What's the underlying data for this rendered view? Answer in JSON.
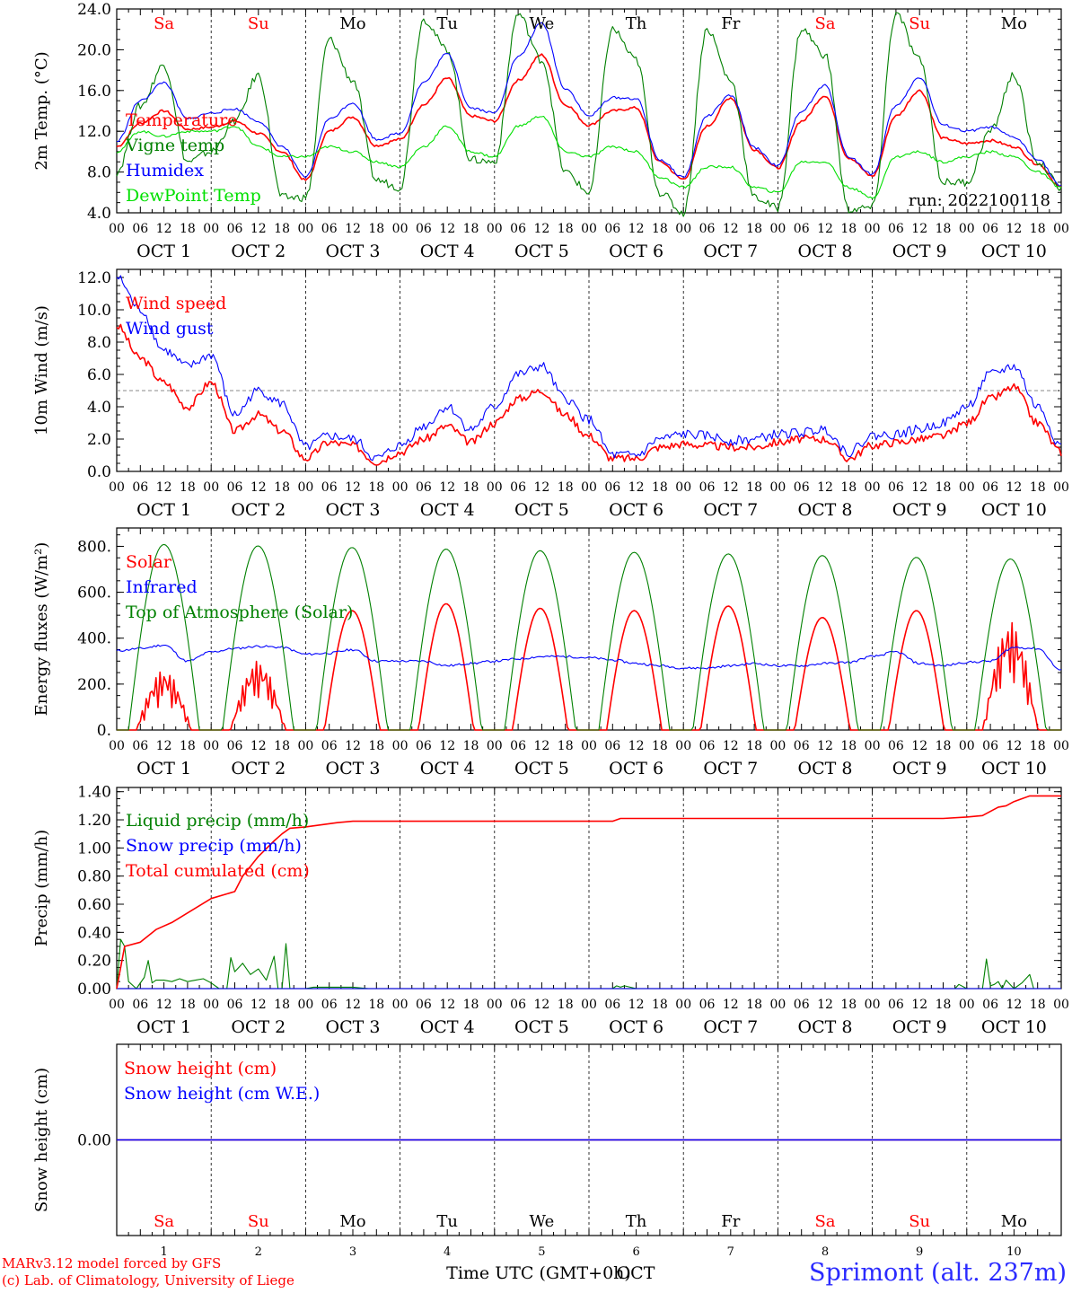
{
  "footer": {
    "model": "MARv3.12 model forced by GFS",
    "lab": "(c) Lab. of Climatology, University of Liege",
    "station": "Sprimont (alt. 237m)"
  },
  "x_axis": {
    "hour_ticks": [
      "00",
      "06",
      "12",
      "18"
    ],
    "day_labels": [
      "OCT  1",
      "OCT  2",
      "OCT  3",
      "OCT  4",
      "OCT  5",
      "OCT  6",
      "OCT  7",
      "OCT  8",
      "OCT  9",
      "OCT 10"
    ],
    "weekdays": [
      "Sa",
      "Su",
      "Mo",
      "Tu",
      "We",
      "Th",
      "Fr",
      "Sa",
      "Su",
      "Mo"
    ],
    "weekend_indices": [
      0,
      1,
      7,
      8
    ],
    "day_numbers": [
      "1",
      "2",
      "3",
      "4",
      "5",
      "6",
      "7",
      "8",
      "9",
      "10"
    ],
    "bottom_label": "Time UTC (GMT+0h)",
    "bottom_month": "OCT"
  },
  "chart_data": [
    {
      "type": "line",
      "panel": "temperature",
      "ylabel": "2m Temp. (°C)",
      "ylim": [
        4,
        24
      ],
      "ytick_labels": [
        "4.0",
        "8.0",
        "12.0",
        "16.0",
        "20.0",
        "24.0"
      ],
      "ytick_values": [
        4,
        8,
        12,
        16,
        20,
        24
      ],
      "run_label": "run: 2022100118",
      "x_hours": [
        0,
        6,
        12,
        18,
        24,
        30,
        36,
        42,
        48,
        54,
        60,
        66,
        72,
        78,
        84,
        90,
        96,
        102,
        108,
        114,
        120,
        126,
        132,
        138,
        144,
        150,
        156,
        162,
        168,
        174,
        180,
        186,
        192,
        198,
        204,
        210,
        216,
        222,
        228,
        234,
        240
      ],
      "series": [
        {
          "name": "Temperature",
          "color": "#ff0000",
          "values": [
            10.5,
            12.8,
            14.0,
            12.2,
            12.4,
            13.0,
            11.8,
            10.0,
            7.2,
            12.0,
            13.4,
            10.6,
            11.2,
            14.6,
            17.2,
            13.5,
            13.0,
            17.0,
            19.5,
            14.6,
            12.6,
            14.0,
            14.3,
            9.0,
            7.3,
            12.5,
            15.3,
            10.2,
            8.4,
            13.0,
            15.5,
            9.4,
            7.6,
            13.5,
            16.0,
            11.3,
            10.8,
            11.1,
            10.5,
            8.8,
            6.5
          ]
        },
        {
          "name": "Vigne temp",
          "color": "#008000",
          "values": [
            8.0,
            14.5,
            18.5,
            9.0,
            10.0,
            13.0,
            17.5,
            5.5,
            5.5,
            21.0,
            17.0,
            7.2,
            6.5,
            23.0,
            20.0,
            9.2,
            9.0,
            23.5,
            19.0,
            8.0,
            6.0,
            22.0,
            19.0,
            6.0,
            4.0,
            22.0,
            17.0,
            5.5,
            4.5,
            22.0,
            19.5,
            4.3,
            4.5,
            23.5,
            19.0,
            7.0,
            7.0,
            12.0,
            17.5,
            9.0,
            6.5
          ]
        },
        {
          "name": "Humidex",
          "color": "#0000ff",
          "values": [
            11.0,
            15.0,
            16.8,
            13.2,
            13.8,
            14.2,
            13.0,
            10.5,
            7.5,
            13.2,
            14.8,
            11.2,
            11.8,
            16.8,
            19.6,
            14.3,
            13.8,
            19.3,
            22.6,
            16.2,
            13.5,
            15.3,
            15.2,
            9.2,
            7.5,
            13.5,
            15.5,
            10.4,
            8.6,
            14.0,
            16.5,
            9.5,
            7.8,
            14.5,
            17.3,
            12.6,
            12.0,
            12.4,
            11.4,
            9.3,
            6.6
          ]
        },
        {
          "name": "DewPoint Temp",
          "color": "#00e000",
          "values": [
            10.0,
            12.0,
            11.5,
            12.0,
            12.0,
            12.5,
            10.5,
            9.5,
            9.5,
            10.5,
            10.0,
            9.0,
            8.5,
            10.5,
            12.5,
            10.0,
            9.5,
            12.5,
            13.5,
            10.0,
            9.5,
            10.5,
            10.0,
            7.5,
            6.5,
            8.5,
            8.5,
            6.5,
            6.0,
            9.0,
            9.0,
            6.5,
            5.5,
            9.5,
            10.0,
            9.0,
            9.5,
            10.0,
            9.5,
            8.0,
            6.5
          ]
        }
      ]
    },
    {
      "type": "line",
      "panel": "wind",
      "ylabel": "10m Wind (m/s)",
      "ylim": [
        0,
        12.5
      ],
      "ytick_labels": [
        "0.0",
        "2.0",
        "4.0",
        "6.0",
        "8.0",
        "10.0",
        "12.0"
      ],
      "ytick_values": [
        0,
        2,
        4,
        6,
        8,
        10,
        12
      ],
      "reference_line": 5.0,
      "x_hours": [
        0,
        6,
        12,
        18,
        24,
        30,
        36,
        42,
        48,
        54,
        60,
        66,
        72,
        78,
        84,
        90,
        96,
        102,
        108,
        114,
        120,
        126,
        132,
        138,
        144,
        150,
        156,
        162,
        168,
        174,
        180,
        186,
        192,
        198,
        204,
        210,
        216,
        222,
        228,
        234,
        240
      ],
      "series": [
        {
          "name": "Wind speed",
          "color": "#ff0000",
          "values": [
            9.0,
            7.0,
            5.5,
            4.0,
            5.5,
            2.5,
            3.5,
            2.5,
            0.8,
            1.8,
            1.6,
            0.6,
            1.2,
            2.0,
            2.8,
            1.8,
            3.0,
            4.5,
            5.0,
            3.5,
            2.2,
            0.8,
            0.8,
            1.5,
            1.7,
            1.6,
            1.5,
            1.5,
            1.8,
            2.0,
            2.0,
            0.8,
            1.6,
            1.8,
            2.0,
            2.2,
            3.0,
            4.5,
            5.2,
            3.0,
            1.2
          ]
        },
        {
          "name": "Wind gust",
          "color": "#0000ff",
          "values": [
            12.0,
            10.0,
            7.5,
            6.5,
            7.2,
            3.5,
            5.0,
            4.2,
            1.5,
            2.2,
            2.0,
            0.8,
            1.6,
            2.8,
            4.0,
            2.6,
            4.0,
            6.0,
            6.5,
            4.5,
            3.2,
            1.0,
            1.0,
            2.0,
            2.3,
            2.2,
            1.9,
            2.0,
            2.3,
            2.4,
            2.6,
            1.2,
            2.2,
            2.3,
            2.6,
            3.0,
            4.0,
            6.0,
            6.5,
            4.0,
            1.6
          ]
        }
      ]
    },
    {
      "type": "line",
      "panel": "energy",
      "ylabel": "Energy fluxes (W/m²)",
      "ylim": [
        0,
        880
      ],
      "ytick_labels": [
        "0.",
        "200.",
        "400.",
        "600.",
        "800."
      ],
      "ytick_values": [
        0,
        200,
        400,
        600,
        800
      ],
      "series": [
        {
          "name": "Solar",
          "color": "#ff0000",
          "day_peaks": [
            260,
            300,
            520,
            550,
            530,
            520,
            540,
            490,
            520,
            470
          ]
        },
        {
          "name": "Infrared",
          "color": "#0000ff",
          "x_hours": [
            0,
            6,
            12,
            18,
            24,
            30,
            36,
            42,
            48,
            54,
            60,
            66,
            72,
            78,
            84,
            90,
            96,
            102,
            108,
            114,
            120,
            126,
            132,
            138,
            144,
            150,
            156,
            162,
            168,
            174,
            180,
            186,
            192,
            198,
            204,
            210,
            216,
            222,
            228,
            234,
            240
          ],
          "values": [
            345,
            355,
            370,
            300,
            340,
            355,
            365,
            360,
            330,
            335,
            350,
            300,
            300,
            300,
            280,
            290,
            300,
            310,
            320,
            320,
            315,
            305,
            290,
            280,
            270,
            270,
            280,
            290,
            280,
            280,
            290,
            295,
            320,
            340,
            290,
            280,
            295,
            300,
            360,
            355,
            260
          ]
        },
        {
          "name": "Top of Atmosphere (Solar)",
          "color": "#008000",
          "day_peaks": [
            808,
            802,
            795,
            788,
            781,
            774,
            767,
            760,
            752,
            745
          ]
        }
      ]
    },
    {
      "type": "line",
      "panel": "precip",
      "ylabel": "Precip (mm/h)",
      "ylim": [
        0,
        1.43
      ],
      "ytick_labels": [
        "0.00",
        "0.20",
        "0.40",
        "0.60",
        "0.80",
        "1.00",
        "1.20",
        "1.40"
      ],
      "ytick_values": [
        0,
        0.2,
        0.4,
        0.6,
        0.8,
        1.0,
        1.2,
        1.4
      ],
      "series": [
        {
          "name": "Liquid precip (mm/h)",
          "color": "#008000",
          "x_hours": [
            0,
            1,
            2,
            3,
            5,
            7,
            8,
            9,
            10,
            12,
            14,
            16,
            18,
            20,
            22,
            24,
            26,
            28,
            29,
            30,
            32,
            34,
            36,
            38,
            40,
            41,
            42,
            43,
            44,
            46,
            48,
            50,
            56,
            60,
            64,
            72,
            96,
            120,
            126,
            127,
            128,
            129,
            132,
            144,
            168,
            192,
            213,
            214,
            216,
            220,
            221,
            222,
            223,
            224,
            225,
            226,
            228,
            230,
            232,
            233,
            234,
            236,
            240
          ],
          "values": [
            0,
            0.35,
            0.3,
            0.05,
            0.0,
            0.08,
            0.2,
            0.04,
            0.06,
            0.06,
            0.05,
            0.07,
            0.05,
            0.06,
            0.07,
            0.04,
            0.0,
            0.0,
            0.22,
            0.12,
            0.18,
            0.1,
            0.14,
            0.06,
            0.23,
            0.0,
            0.0,
            0.32,
            0.0,
            0.0,
            0.0,
            0.01,
            0.01,
            0.01,
            0.0,
            0.0,
            0.0,
            0.0,
            0.0,
            0.02,
            0.01,
            0.02,
            0.0,
            0.0,
            0.0,
            0.0,
            0.0,
            0.03,
            0.0,
            0.0,
            0.21,
            0.02,
            0.03,
            0.05,
            0.0,
            0.06,
            0.0,
            0.04,
            0.1,
            0.0,
            0.0,
            0.0,
            0.0
          ]
        },
        {
          "name": "Snow precip (mm/h)",
          "color": "#0000ff",
          "x_hours": [
            0,
            240
          ],
          "values": [
            0,
            0
          ]
        },
        {
          "name": "Total cumulated (cm)",
          "color": "#ff0000",
          "x_hours": [
            0,
            2,
            6,
            10,
            14,
            24,
            30,
            32,
            36,
            40,
            42,
            44,
            48,
            56,
            60,
            66,
            72,
            96,
            120,
            126,
            128,
            132,
            144,
            168,
            192,
            204,
            210,
            216,
            220,
            224,
            226,
            228,
            232,
            240
          ],
          "values": [
            0,
            0.3,
            0.33,
            0.42,
            0.47,
            0.64,
            0.69,
            0.8,
            0.94,
            1.05,
            1.1,
            1.14,
            1.15,
            1.18,
            1.19,
            1.19,
            1.19,
            1.19,
            1.19,
            1.19,
            1.21,
            1.21,
            1.21,
            1.21,
            1.21,
            1.21,
            1.21,
            1.22,
            1.23,
            1.29,
            1.3,
            1.33,
            1.37,
            1.37
          ]
        }
      ]
    },
    {
      "type": "line",
      "panel": "snow",
      "ylabel": "Snow height (cm)",
      "ytick_labels": [
        "0.00"
      ],
      "ytick_values": [
        0
      ],
      "series": [
        {
          "name": "Snow height (cm)",
          "color": "#ff0000",
          "x_hours": [
            0,
            240
          ],
          "values": [
            0,
            0
          ]
        },
        {
          "name": "Snow height (cm W.E.)",
          "color": "#0000ff",
          "x_hours": [
            0,
            240
          ],
          "values": [
            0,
            0
          ]
        }
      ]
    }
  ]
}
